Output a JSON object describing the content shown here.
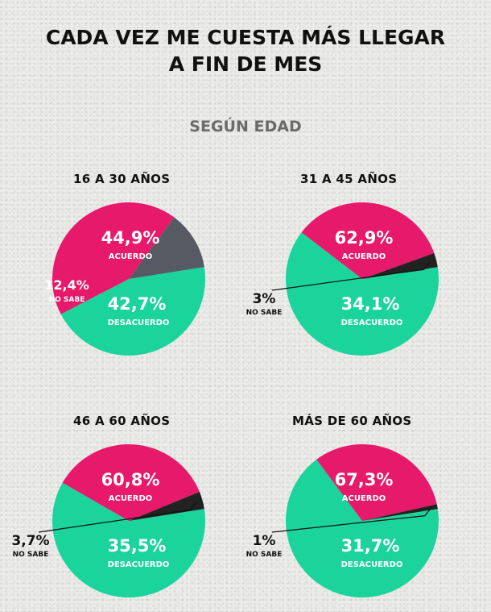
{
  "title_line1": "CADA VEZ ME CUESTA MÁS LLEGAR",
  "title_line2": "A FIN DE MES",
  "subtitle": "SEGÚN EDAD",
  "colors": {
    "acuerdo": "#1ad49c",
    "desacuerdo": "#e6196a",
    "no_sabe": "#222222",
    "no_sabe_young": "#555a63"
  },
  "chart_data": [
    {
      "type": "pie",
      "title": "16 A 30 AÑOS",
      "slices": [
        {
          "label": "ACUERDO",
          "value": 44.9,
          "text": "44,9%"
        },
        {
          "label": "DESACUERDO",
          "value": 42.7,
          "text": "42,7%"
        },
        {
          "label": "NO SABE",
          "value": 12.4,
          "text": "12,4%"
        }
      ]
    },
    {
      "type": "pie",
      "title": "31 A 45 AÑOS",
      "slices": [
        {
          "label": "ACUERDO",
          "value": 62.9,
          "text": "62,9%"
        },
        {
          "label": "DESACUERDO",
          "value": 34.1,
          "text": "34,1%"
        },
        {
          "label": "NO SABE",
          "value": 3,
          "text": "3%"
        }
      ]
    },
    {
      "type": "pie",
      "title": "46 A 60 AÑOS",
      "slices": [
        {
          "label": "ACUERDO",
          "value": 60.8,
          "text": "60,8%"
        },
        {
          "label": "DESACUERDO",
          "value": 35.5,
          "text": "35,5%"
        },
        {
          "label": "NO SABE",
          "value": 3.7,
          "text": "3,7%"
        }
      ]
    },
    {
      "type": "pie",
      "title": "MÁS DE 60 AÑOS",
      "slices": [
        {
          "label": "ACUERDO",
          "value": 67.3,
          "text": "67,3%"
        },
        {
          "label": "DESACUERDO",
          "value": 31.7,
          "text": "31,7%"
        },
        {
          "label": "NO SABE",
          "value": 1,
          "text": "1%"
        }
      ]
    }
  ]
}
